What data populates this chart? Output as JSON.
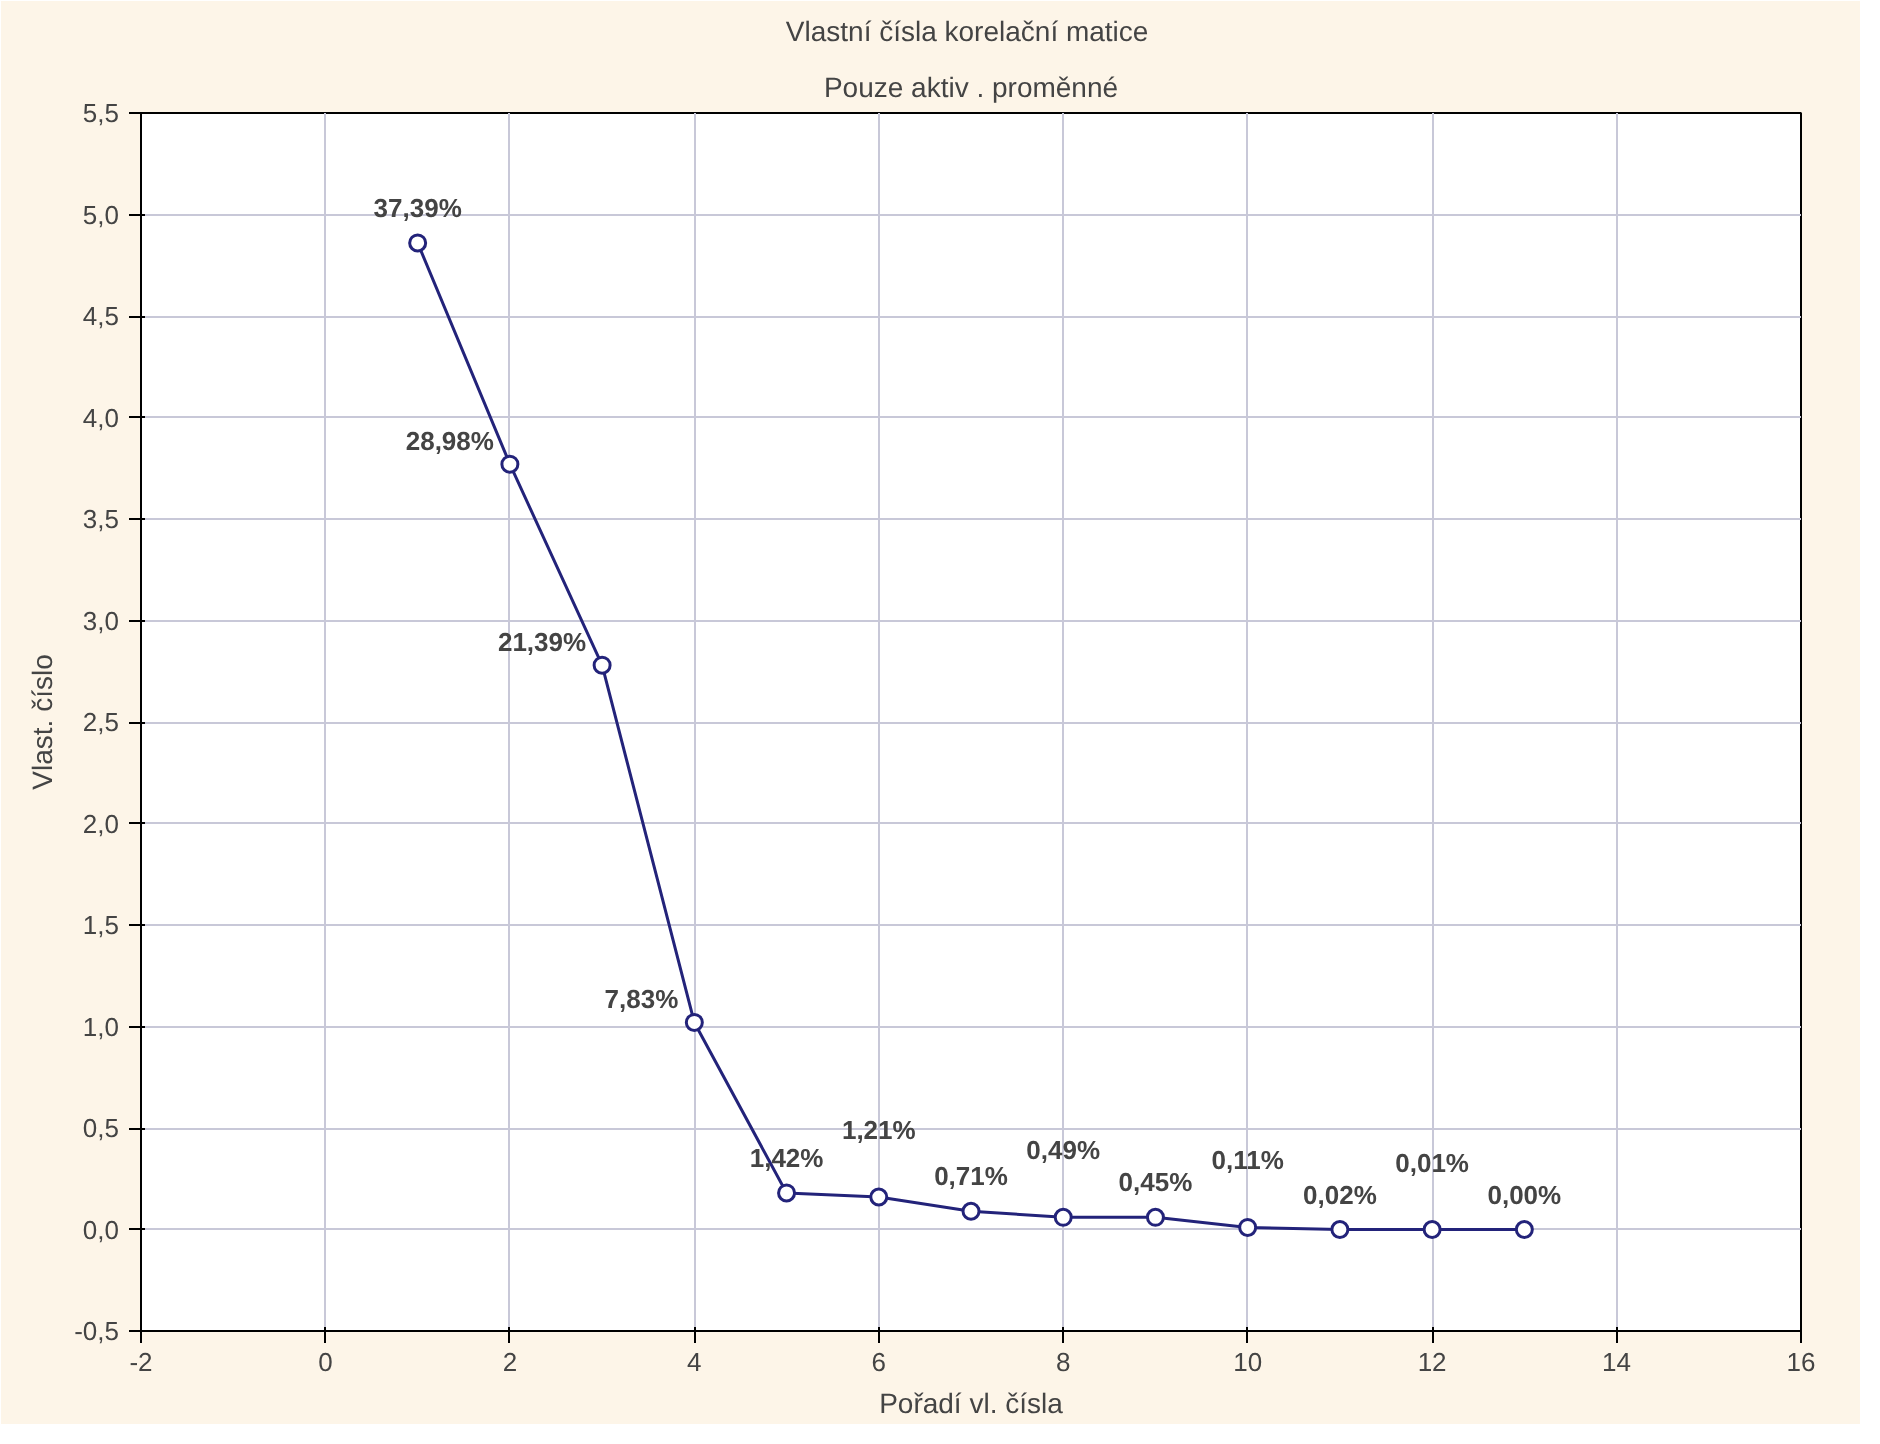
{
  "chart_data": {
    "type": "line",
    "title": "Vlastní čísla  korelační matice",
    "subtitle": "Pouze aktiv . proměnné",
    "xlabel": "Pořadí vl. čísla",
    "ylabel": "Vlast. číslo",
    "x": [
      1,
      2,
      3,
      4,
      5,
      6,
      7,
      8,
      9,
      10,
      11,
      12,
      13
    ],
    "series": [
      {
        "color": "#23237a",
        "values": [
          4.86,
          3.77,
          2.78,
          1.02,
          0.18,
          0.16,
          0.09,
          0.06,
          0.06,
          0.01,
          0.0,
          0.0,
          0.0
        ]
      }
    ],
    "annotations": [
      {
        "text": "37,39%",
        "x": 1,
        "y": 4.86
      },
      {
        "text": "28,98%",
        "x": 2,
        "y": 3.77
      },
      {
        "text": "21,39%",
        "x": 3,
        "y": 2.78
      },
      {
        "text": "7,83%",
        "x": 4,
        "y": 1.02
      },
      {
        "text": "1,42%",
        "x": 5,
        "y": 0.18
      },
      {
        "text": "1,21%",
        "x": 6,
        "y": 0.16
      },
      {
        "text": "0,71%",
        "x": 7,
        "y": 0.09
      },
      {
        "text": "0,49%",
        "x": 8,
        "y": 0.06
      },
      {
        "text": "0,45%",
        "x": 9,
        "y": 0.06
      },
      {
        "text": "0,11%",
        "x": 10,
        "y": 0.01
      },
      {
        "text": "0,02%",
        "x": 11,
        "y": 0.0
      },
      {
        "text": "0,01%",
        "x": 12,
        "y": 0.0
      },
      {
        "text": "0,00%",
        "x": 13,
        "y": 0.0
      }
    ],
    "xlim": [
      -2,
      16
    ],
    "xticks": [
      -2,
      0,
      2,
      4,
      6,
      8,
      10,
      12,
      14,
      16
    ],
    "ylim": [
      -0.5,
      5.5
    ],
    "yticks": [
      {
        "value": -0.5,
        "label": "-0,5"
      },
      {
        "value": 0,
        "label": "0,0"
      },
      {
        "value": 0.5,
        "label": "0,5"
      },
      {
        "value": 1,
        "label": "1,0"
      },
      {
        "value": 1.5,
        "label": "1,5"
      },
      {
        "value": 2,
        "label": "2,0"
      },
      {
        "value": 2.5,
        "label": "2,5"
      },
      {
        "value": 3,
        "label": "3,0"
      },
      {
        "value": 3.5,
        "label": "3,5"
      },
      {
        "value": 4,
        "label": "4,0"
      },
      {
        "value": 4.5,
        "label": "4,5"
      },
      {
        "value": 5,
        "label": "5,0"
      },
      {
        "value": 5.5,
        "label": "5,5"
      }
    ],
    "grid": true,
    "marker": "circle",
    "line_style": "solid"
  }
}
